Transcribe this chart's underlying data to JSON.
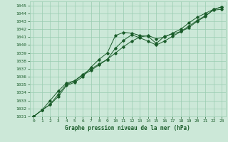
{
  "xlabel": "Graphe pression niveau de la mer (hPa)",
  "xlim": [
    -0.5,
    23.5
  ],
  "ylim": [
    1031,
    1045.5
  ],
  "yticks": [
    1031,
    1032,
    1033,
    1034,
    1035,
    1036,
    1037,
    1038,
    1039,
    1040,
    1041,
    1042,
    1043,
    1044,
    1045
  ],
  "xticks": [
    0,
    1,
    2,
    3,
    4,
    5,
    6,
    7,
    8,
    9,
    10,
    11,
    12,
    13,
    14,
    15,
    16,
    17,
    18,
    19,
    20,
    21,
    22,
    23
  ],
  "bg_color": "#cce8d8",
  "grid_color": "#99ccb0",
  "line_color": "#1a5c2a",
  "series": [
    [
      1031.0,
      1031.8,
      1032.5,
      1033.5,
      1034.9,
      1035.3,
      1036.0,
      1037.2,
      1038.2,
      1039.0,
      1041.2,
      1041.6,
      1041.5,
      1041.2,
      1041.1,
      1040.2,
      1041.1,
      1041.4,
      1041.7,
      1042.2,
      1043.0,
      1043.6,
      1044.5,
      1044.8
    ],
    [
      1031.0,
      1031.8,
      1033.0,
      1034.2,
      1035.2,
      1035.5,
      1036.3,
      1037.0,
      1037.6,
      1038.2,
      1039.6,
      1040.6,
      1041.3,
      1040.9,
      1040.5,
      1040.0,
      1040.5,
      1041.1,
      1041.7,
      1042.4,
      1043.1,
      1043.7,
      1044.4,
      1044.5
    ],
    [
      1031.0,
      1031.8,
      1032.5,
      1033.8,
      1035.0,
      1035.5,
      1036.2,
      1036.8,
      1037.5,
      1038.2,
      1039.0,
      1039.8,
      1040.5,
      1041.0,
      1041.2,
      1040.8,
      1041.0,
      1041.5,
      1042.0,
      1042.8,
      1043.5,
      1044.0,
      1044.5,
      1044.8
    ]
  ]
}
